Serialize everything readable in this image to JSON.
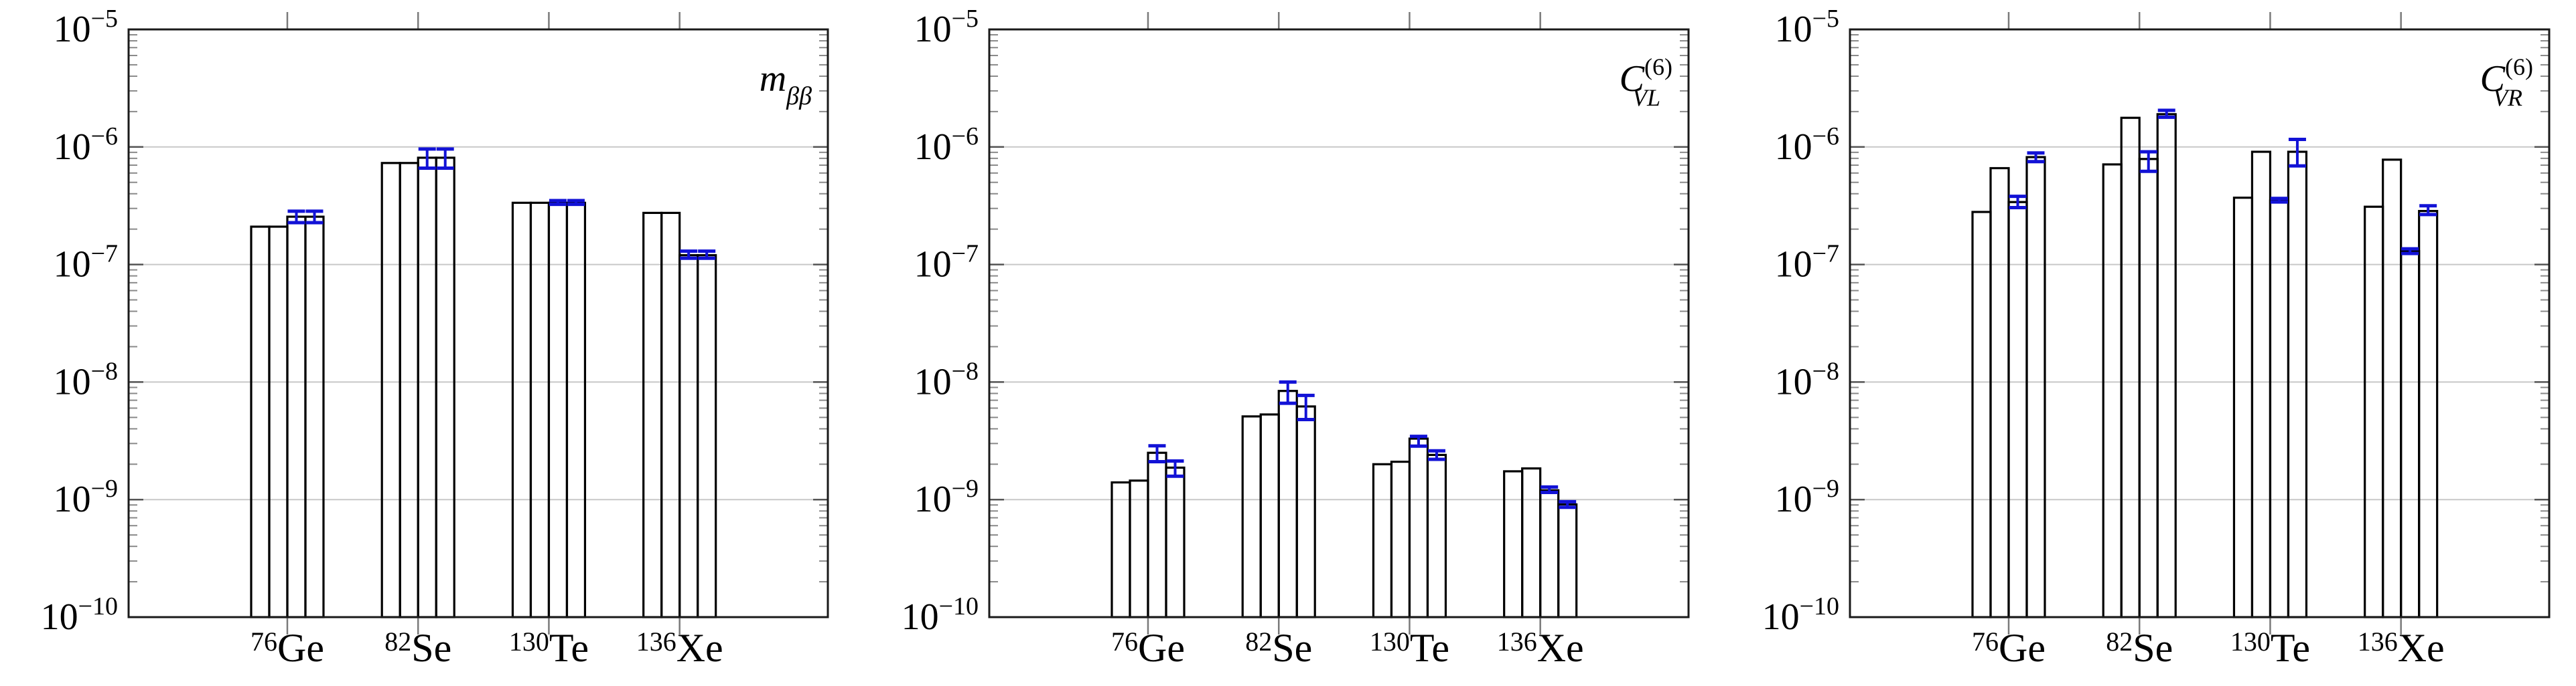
{
  "figure": {
    "background": "#ffffff",
    "colors": {
      "bar_outline": "#000000",
      "error_bar": "#1212d6",
      "grid": "#c8c8c8",
      "axis": "#1a1a1a",
      "major_tick": "#555555",
      "minor_tick": "#8a8a8a",
      "outer_tick": "#7a7a7a",
      "text": "#000000"
    },
    "y_axis": {
      "scale": "log",
      "labels": [
        {
          "base": "10",
          "exponent": "−5"
        },
        {
          "base": "10",
          "exponent": "−6"
        },
        {
          "base": "10",
          "exponent": "−7"
        },
        {
          "base": "10",
          "exponent": "−8"
        },
        {
          "base": "10",
          "exponent": "−9"
        },
        {
          "base": "10",
          "exponent": "−10"
        }
      ]
    },
    "x_axis": {
      "categories": [
        {
          "mass": "76",
          "element": "Ge"
        },
        {
          "mass": "82",
          "element": "Se"
        },
        {
          "mass": "130",
          "element": "Te"
        },
        {
          "mass": "136",
          "element": "Xe"
        }
      ]
    }
  },
  "chart_data": [
    {
      "id": "mbb",
      "type": "bar",
      "title": {
        "symbol": "m",
        "subscript": "ββ",
        "superscript": ""
      },
      "yscale": "log",
      "ylim": [
        1e-10,
        1e-05
      ],
      "groups": [
        {
          "category": "76Ge",
          "bars": [
            2.1e-07,
            2.1e-07,
            2.55e-07,
            2.55e-07
          ],
          "errors": [
            {
              "bar": 3,
              "low": 2.27e-07,
              "high": 2.84e-07
            },
            {
              "bar": 4,
              "low": 2.27e-07,
              "high": 2.84e-07
            }
          ]
        },
        {
          "category": "82Se",
          "bars": [
            7.3e-07,
            7.3e-07,
            8.1e-07,
            8.1e-07
          ],
          "errors": [
            {
              "bar": 3,
              "low": 6.6e-07,
              "high": 9.6e-07
            },
            {
              "bar": 4,
              "low": 6.6e-07,
              "high": 9.6e-07
            }
          ]
        },
        {
          "category": "130Te",
          "bars": [
            3.35e-07,
            3.35e-07,
            3.35e-07,
            3.35e-07
          ],
          "errors": [
            {
              "bar": 3,
              "low": 3.25e-07,
              "high": 3.5e-07
            },
            {
              "bar": 4,
              "low": 3.25e-07,
              "high": 3.5e-07
            }
          ]
        },
        {
          "category": "136Xe",
          "bars": [
            2.75e-07,
            2.75e-07,
            1.2e-07,
            1.2e-07
          ],
          "errors": [
            {
              "bar": 3,
              "low": 1.13e-07,
              "high": 1.3e-07
            },
            {
              "bar": 4,
              "low": 1.13e-07,
              "high": 1.3e-07
            }
          ]
        }
      ]
    },
    {
      "id": "cvl",
      "type": "bar",
      "title": {
        "symbol": "C",
        "subscript": "VL",
        "superscript": "(6)"
      },
      "yscale": "log",
      "ylim": [
        1e-10,
        1e-05
      ],
      "groups": [
        {
          "category": "76Ge",
          "bars": [
            1.4e-09,
            1.45e-09,
            2.5e-09,
            1.87e-09
          ],
          "errors": [
            {
              "bar": 3,
              "low": 2.1e-09,
              "high": 2.87e-09
            },
            {
              "bar": 4,
              "low": 1.58e-09,
              "high": 2.13e-09
            }
          ]
        },
        {
          "category": "82Se",
          "bars": [
            5.1e-09,
            5.3e-09,
            8.4e-09,
            6.2e-09
          ],
          "errors": [
            {
              "bar": 3,
              "low": 6.6e-09,
              "high": 1e-08
            },
            {
              "bar": 4,
              "low": 4.8e-09,
              "high": 7.7e-09
            }
          ]
        },
        {
          "category": "130Te",
          "bars": [
            2e-09,
            2.1e-09,
            3.3e-09,
            2.4e-09
          ],
          "errors": [
            {
              "bar": 3,
              "low": 2.85e-09,
              "high": 3.45e-09
            },
            {
              "bar": 4,
              "low": 2.2e-09,
              "high": 2.6e-09
            }
          ]
        },
        {
          "category": "136Xe",
          "bars": [
            1.74e-09,
            1.84e-09,
            1.2e-09,
            9.1e-10
          ],
          "errors": [
            {
              "bar": 3,
              "low": 1.15e-09,
              "high": 1.28e-09
            },
            {
              "bar": 4,
              "low": 8.6e-10,
              "high": 9.6e-10
            }
          ]
        }
      ]
    },
    {
      "id": "cvr",
      "type": "bar",
      "title": {
        "symbol": "C",
        "subscript": "VR",
        "superscript": "(6)"
      },
      "yscale": "log",
      "ylim": [
        1e-10,
        1e-05
      ],
      "groups": [
        {
          "category": "76Ge",
          "bars": [
            2.8e-07,
            6.6e-07,
            3.4e-07,
            8.2e-07
          ],
          "errors": [
            {
              "bar": 3,
              "low": 3.05e-07,
              "high": 3.8e-07
            },
            {
              "bar": 4,
              "low": 7.5e-07,
              "high": 8.9e-07
            }
          ]
        },
        {
          "category": "82Se",
          "bars": [
            7.1e-07,
            1.77e-06,
            7.9e-07,
            1.9e-06
          ],
          "errors": [
            {
              "bar": 3,
              "low": 6.2e-07,
              "high": 9.1e-07
            },
            {
              "bar": 4,
              "low": 1.79e-06,
              "high": 2.05e-06
            }
          ]
        },
        {
          "category": "130Te",
          "bars": [
            3.7e-07,
            9.1e-07,
            3.5e-07,
            9.1e-07
          ],
          "errors": [
            {
              "bar": 3,
              "low": 3.4e-07,
              "high": 3.65e-07
            },
            {
              "bar": 4,
              "low": 6.9e-07,
              "high": 1.16e-06
            }
          ]
        },
        {
          "category": "136Xe",
          "bars": [
            3.1e-07,
            7.8e-07,
            1.3e-07,
            2.85e-07
          ],
          "errors": [
            {
              "bar": 3,
              "low": 1.24e-07,
              "high": 1.36e-07
            },
            {
              "bar": 4,
              "low": 2.66e-07,
              "high": 3.16e-07
            }
          ]
        }
      ]
    }
  ]
}
